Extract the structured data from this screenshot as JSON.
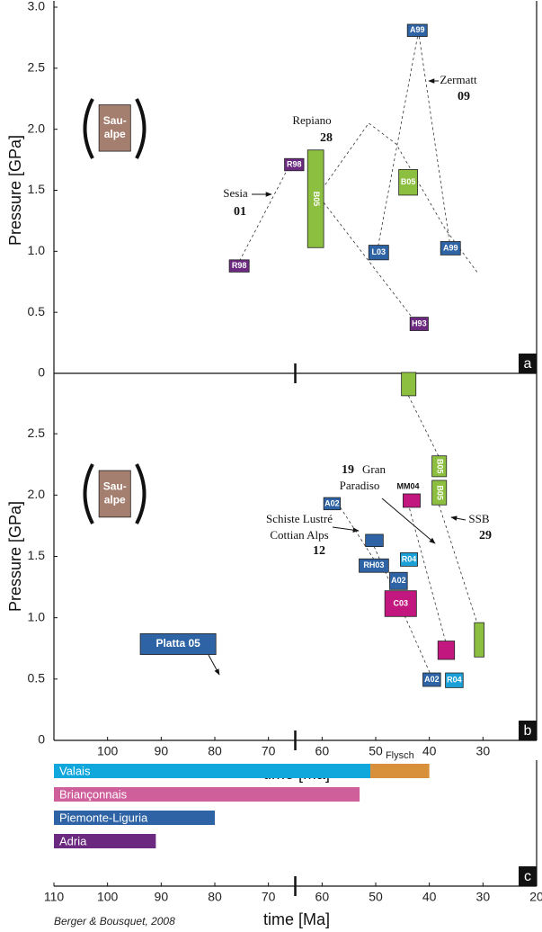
{
  "credit": "Berger & Bousquet, 2008",
  "chart_data": [
    {
      "type": "box-diagram",
      "panel": "a",
      "ylabel": "Pressure [GPa]",
      "xlim": [
        110,
        20
      ],
      "ylim": [
        0,
        3
      ],
      "event_line": 65,
      "yticks": [
        0,
        0.5,
        {
          "value": 1,
          "label": "1.0"
        },
        1.5,
        {
          "value": 2,
          "label": "2.0"
        },
        2.5,
        {
          "value": 3,
          "label": "3.0"
        }
      ],
      "boxes": [
        {
          "label": [
            "Sau-",
            "alpe"
          ],
          "t": [
            101.6,
            95.7
          ],
          "p": [
            2.2,
            1.82
          ],
          "color": "#a47e6e"
        },
        {
          "label": [
            "R98"
          ],
          "t": [
            67.0,
            63.4
          ],
          "p": [
            1.76,
            1.66
          ],
          "color": "#6b2a80"
        },
        {
          "label": [
            "B05"
          ],
          "t": [
            62.7,
            59.7
          ],
          "p": [
            1.83,
            1.03
          ],
          "color": "#8cbf3f",
          "vertical": true
        },
        {
          "label": [
            "R98"
          ],
          "t": [
            77.3,
            73.6
          ],
          "p": [
            0.93,
            0.83
          ],
          "color": "#6b2a80"
        },
        {
          "label": [
            "A99"
          ],
          "t": [
            44.1,
            40.4
          ],
          "p": [
            2.86,
            2.76
          ],
          "color": "#2e64a5"
        },
        {
          "label": [
            "B05"
          ],
          "t": [
            45.7,
            42.2
          ],
          "p": [
            1.67,
            1.46
          ],
          "color": "#8cbf3f"
        },
        {
          "label": [
            "L03"
          ],
          "t": [
            51.3,
            47.6
          ],
          "p": [
            1.05,
            0.93
          ],
          "color": "#2e64a5"
        },
        {
          "label": [
            "A99"
          ],
          "t": [
            37.9,
            34.2
          ],
          "p": [
            1.08,
            0.97
          ],
          "color": "#2e64a5"
        },
        {
          "label": [
            "H93"
          ],
          "t": [
            43.6,
            40.2
          ],
          "p": [
            0.46,
            0.35
          ],
          "color": "#6b2a80"
        }
      ],
      "dashed": [
        [
          [
            75.4,
            0.92
          ],
          [
            66.0,
            1.71
          ]
        ],
        [
          [
            60.0,
            1.51
          ],
          [
            51.3,
            2.05
          ],
          [
            46.2,
            1.88
          ],
          [
            37.0,
            1.18
          ],
          [
            31.1,
            0.83
          ]
        ],
        [
          [
            59.7,
            1.4
          ],
          [
            42.9,
            0.44
          ]
        ],
        [
          [
            42.2,
            2.76
          ],
          [
            49.6,
            1.03
          ]
        ],
        [
          [
            41.9,
            2.76
          ],
          [
            36.2,
            1.07
          ]
        ]
      ],
      "annotations": [
        [
          "Sesia",
          "01"
        ],
        [
          "Repiano",
          "28"
        ],
        [
          "Zermatt",
          "09"
        ]
      ]
    },
    {
      "type": "box-diagram",
      "panel": "b",
      "ylabel": "Pressure [GPa]",
      "xlabel": "time [Ma]",
      "xlim": [
        110,
        20
      ],
      "ylim": [
        0,
        3
      ],
      "event_line": 65,
      "xticks": [
        100,
        90,
        80,
        70,
        60,
        50,
        40,
        30
      ],
      "yticks": [
        0,
        0.5,
        {
          "value": 1,
          "label": "1.0"
        },
        1.5,
        {
          "value": 2,
          "label": "2.0"
        },
        2.5
      ],
      "boxes": [
        {
          "t": [
            45.2,
            42.5
          ],
          "p": [
            3.0,
            2.81
          ],
          "color": "#8cbf3f"
        },
        {
          "label": [
            "B05"
          ],
          "t": [
            39.5,
            36.8
          ],
          "p": [
            2.32,
            2.15
          ],
          "color": "#8cbf3f",
          "vertical": true
        },
        {
          "label": [
            "B05"
          ],
          "t": [
            39.5,
            36.8
          ],
          "p": [
            2.12,
            1.92
          ],
          "color": "#8cbf3f",
          "vertical": true
        },
        {
          "label": [
            "Sau-",
            "alpe"
          ],
          "t": [
            101.6,
            95.7
          ],
          "p": [
            2.2,
            1.82
          ],
          "color": "#a47e6e"
        },
        {
          "label": [
            "A02"
          ],
          "t": [
            59.7,
            56.6
          ],
          "p": [
            1.98,
            1.88
          ],
          "color": "#2e64a5"
        },
        {
          "label": [
            "MM04"
          ],
          "t": [
            44.9,
            41.7
          ],
          "p": [
            2.01,
            1.9
          ],
          "color": "#c2177f",
          "label_position": "above"
        },
        {
          "t": [
            51.9,
            48.6
          ],
          "p": [
            1.68,
            1.58
          ],
          "color": "#2e64a5"
        },
        {
          "label": [
            "R04"
          ],
          "t": [
            45.4,
            42.2
          ],
          "p": [
            1.53,
            1.42
          ],
          "color": "#1a9fd6"
        },
        {
          "label": [
            "RH03"
          ],
          "t": [
            53.1,
            47.6
          ],
          "p": [
            1.48,
            1.37
          ],
          "color": "#2e64a5"
        },
        {
          "label": [
            "A02"
          ],
          "t": [
            47.4,
            44.1
          ],
          "p": [
            1.37,
            1.23
          ],
          "color": "#2e64a5"
        },
        {
          "label": [
            "C03"
          ],
          "t": [
            48.3,
            42.4
          ],
          "p": [
            1.22,
            1.01
          ],
          "color": "#c2177f"
        },
        {
          "label": [
            "Platta  05"
          ],
          "t": [
            93.9,
            79.8
          ],
          "p": [
            0.87,
            0.7
          ],
          "color": "#2e64a5",
          "large": true
        },
        {
          "t": [
            31.6,
            29.8
          ],
          "p": [
            0.96,
            0.68
          ],
          "color": "#8cbf3f"
        },
        {
          "t": [
            38.4,
            35.3
          ],
          "p": [
            0.81,
            0.66
          ],
          "color": "#c2177f"
        },
        {
          "label": [
            "A02"
          ],
          "t": [
            41.2,
            37.9
          ],
          "p": [
            0.55,
            0.44
          ],
          "color": "#2e64a5"
        },
        {
          "label": [
            "R04"
          ],
          "t": [
            37.0,
            33.7
          ],
          "p": [
            0.55,
            0.43
          ],
          "color": "#1a9fd6"
        }
      ],
      "dashed": [
        [
          [
            43.9,
            2.81
          ],
          [
            38.2,
            2.31
          ]
        ],
        [
          [
            56.6,
            1.9
          ],
          [
            50.4,
            1.48
          ]
        ],
        [
          [
            43.7,
            1.89
          ],
          [
            37.0,
            0.81
          ]
        ],
        [
          [
            50.3,
            1.58
          ],
          [
            39.9,
            0.55
          ]
        ],
        [
          [
            38.2,
            1.92
          ],
          [
            31.1,
            0.96
          ]
        ]
      ],
      "annotations": [
        [
          "19",
          "Gran",
          "Paradiso"
        ],
        [
          "Schiste Lustré",
          "Cottian Alps",
          "12"
        ],
        [
          "SSB",
          "29"
        ]
      ]
    },
    {
      "type": "range-bars",
      "panel": "c",
      "xlabel": "time [Ma]",
      "xlim": [
        110,
        20
      ],
      "event_line": 65,
      "xticks": [
        110,
        100,
        90,
        80,
        70,
        60,
        50,
        40,
        30,
        20
      ],
      "rows": [
        [
          {
            "name": "Valais",
            "t": [
              110,
              51
            ],
            "color": "#10a7dd"
          },
          {
            "name": "Flysch",
            "t": [
              51,
              40
            ],
            "color": "#d9903a",
            "label_position": "above"
          }
        ],
        [
          {
            "name": "Briançonnais",
            "t": [
              110,
              53
            ],
            "color": "#cf5f9a"
          }
        ],
        [
          {
            "name": "Piemonte-Liguria",
            "t": [
              110,
              80
            ],
            "color": "#2e64a5"
          }
        ],
        [
          {
            "name": "Adria",
            "t": [
              110,
              91
            ],
            "color": "#6b2a80"
          }
        ]
      ]
    }
  ]
}
